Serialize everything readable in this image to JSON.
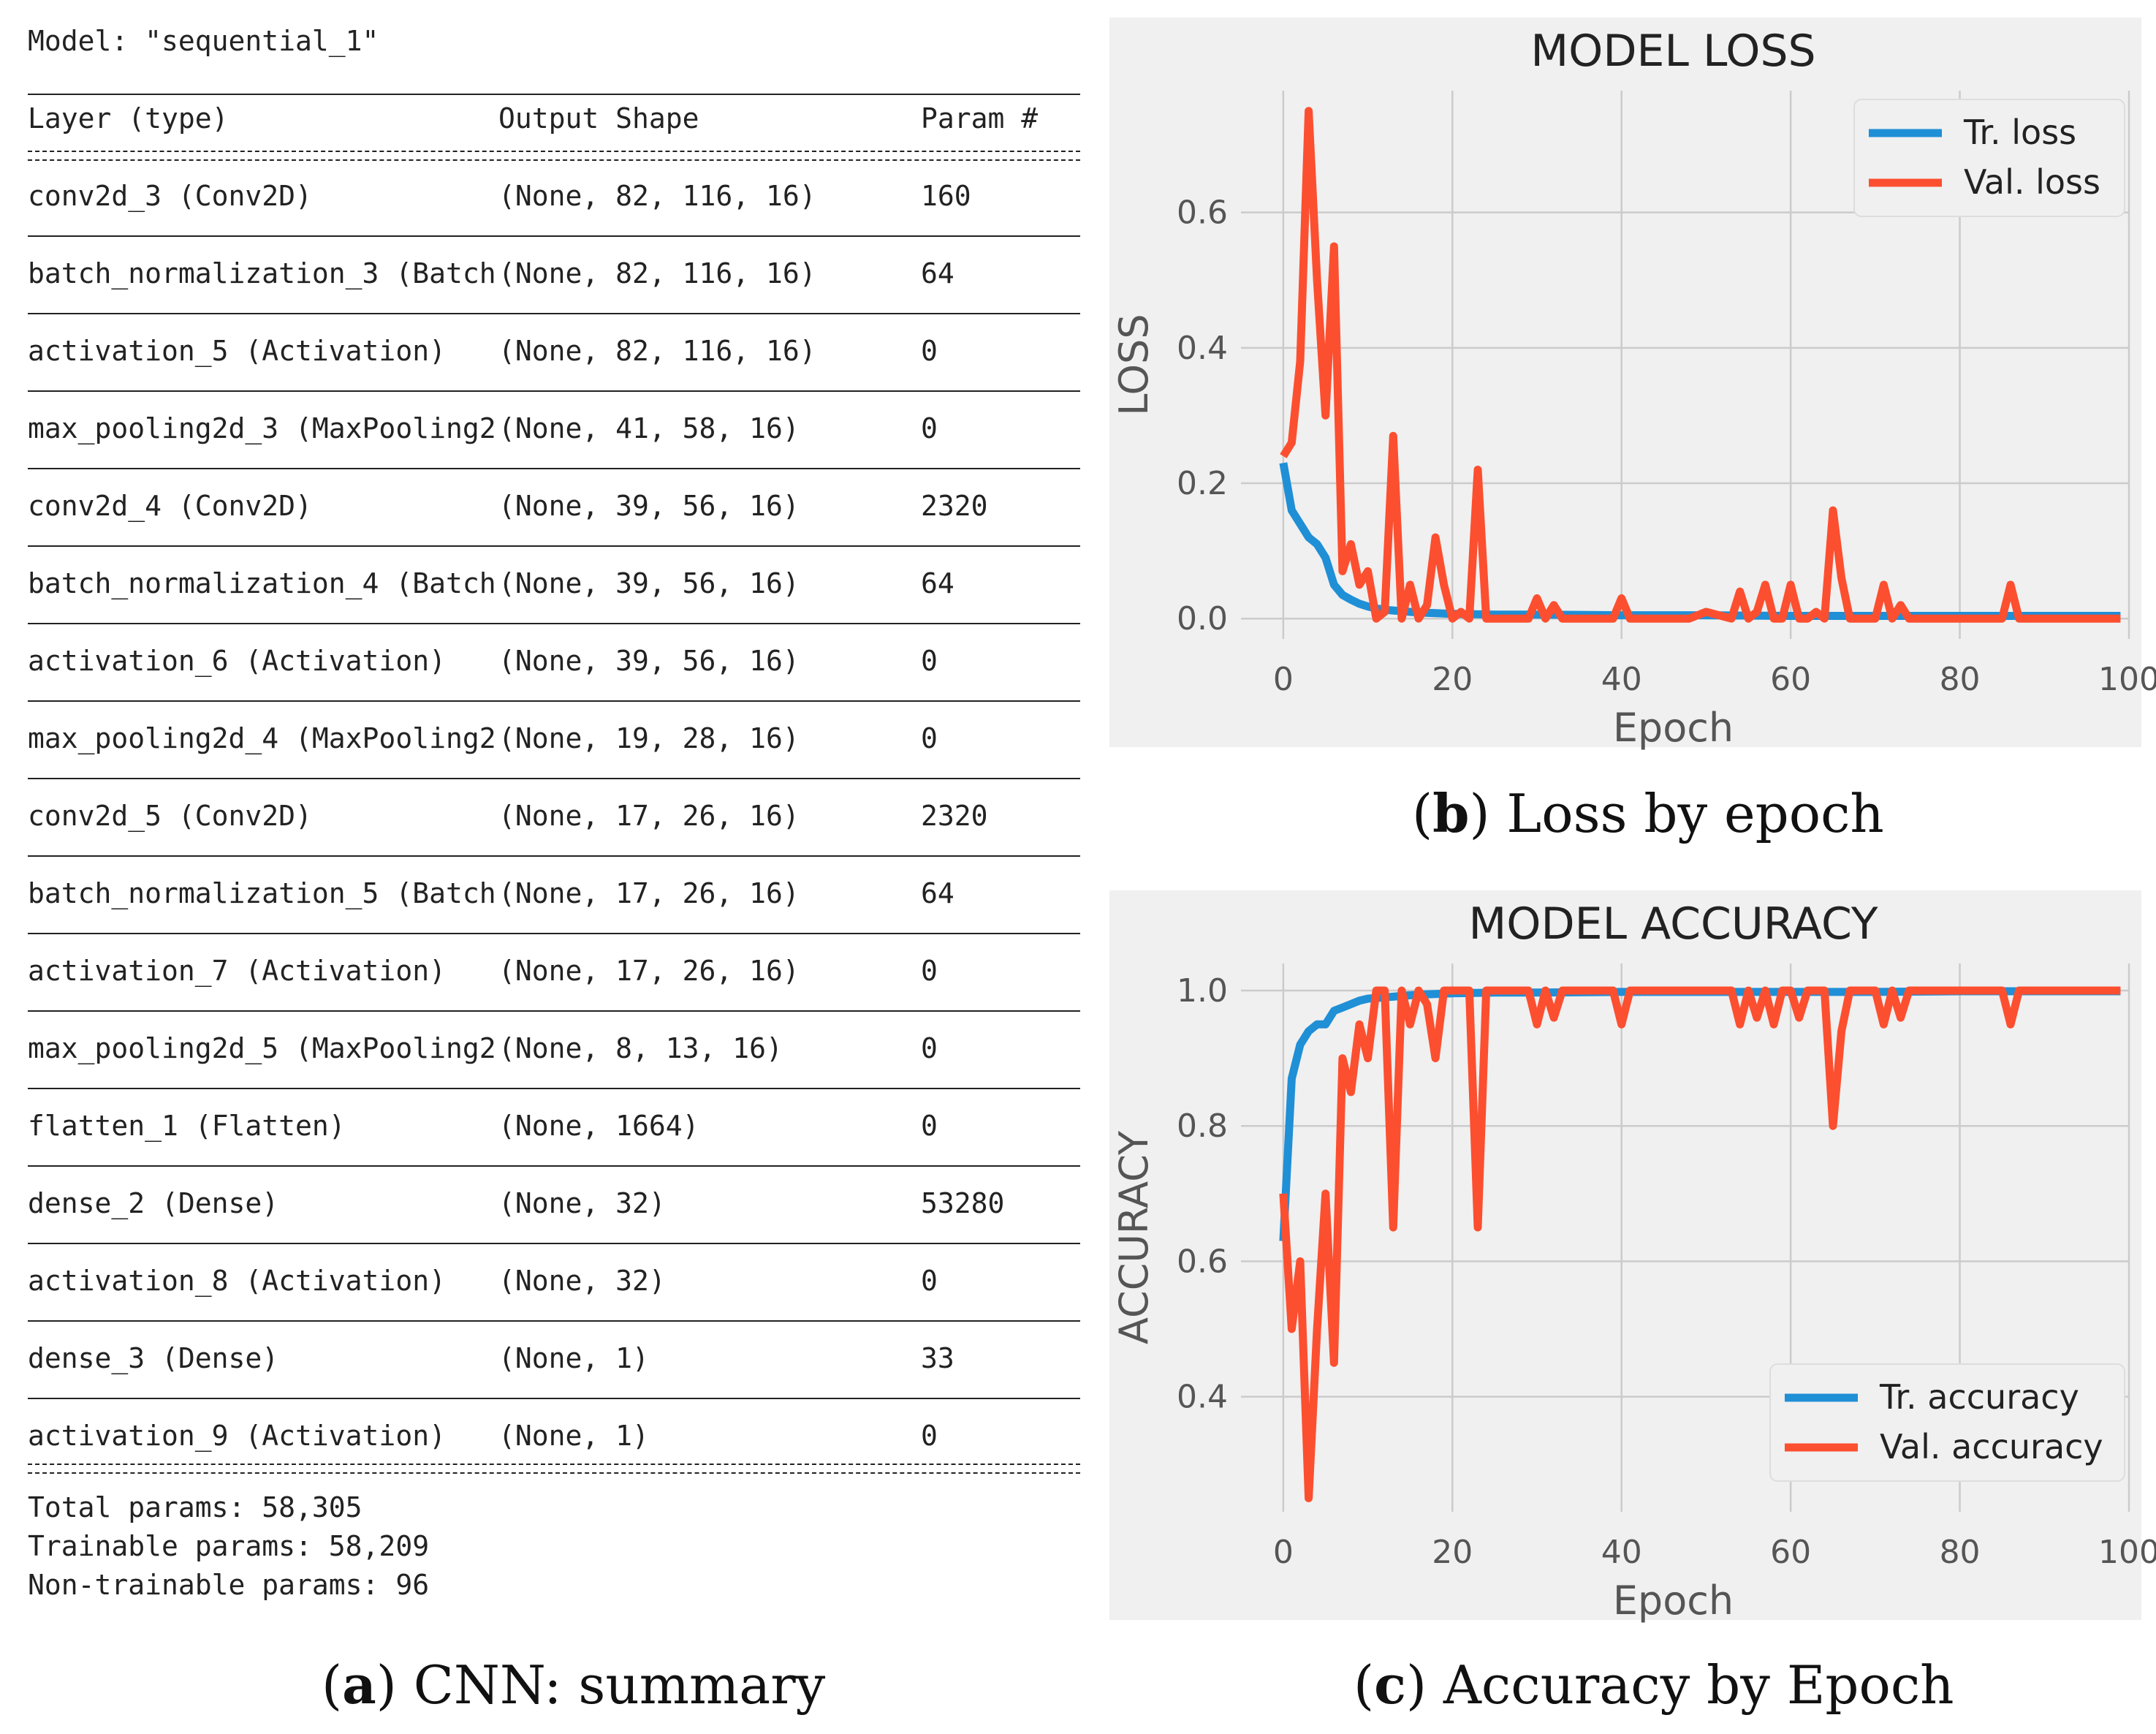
{
  "summary": {
    "model_label": "Model: \"sequential_1\"",
    "headers": [
      "Layer (type)",
      "Output Shape",
      "Param #"
    ],
    "rows": [
      [
        "conv2d_3 (Conv2D)",
        "(None, 82, 116, 16)",
        "160"
      ],
      [
        "batch_normalization_3 (Batch",
        "(None, 82, 116, 16)",
        "64"
      ],
      [
        "activation_5 (Activation)",
        "(None, 82, 116, 16)",
        "0"
      ],
      [
        "max_pooling2d_3 (MaxPooling2",
        "(None, 41, 58, 16)",
        "0"
      ],
      [
        "conv2d_4 (Conv2D)",
        "(None, 39, 56, 16)",
        "2320"
      ],
      [
        "batch_normalization_4 (Batch",
        "(None, 39, 56, 16)",
        "64"
      ],
      [
        "activation_6 (Activation)",
        "(None, 39, 56, 16)",
        "0"
      ],
      [
        "max_pooling2d_4 (MaxPooling2",
        "(None, 19, 28, 16)",
        "0"
      ],
      [
        "conv2d_5 (Conv2D)",
        "(None, 17, 26, 16)",
        "2320"
      ],
      [
        "batch_normalization_5 (Batch",
        "(None, 17, 26, 16)",
        "64"
      ],
      [
        "activation_7 (Activation)",
        "(None, 17, 26, 16)",
        "0"
      ],
      [
        "max_pooling2d_5 (MaxPooling2",
        "(None, 8, 13, 16)",
        "0"
      ],
      [
        "flatten_1 (Flatten)",
        "(None, 1664)",
        "0"
      ],
      [
        "dense_2 (Dense)",
        "(None, 32)",
        "53280"
      ],
      [
        "activation_8 (Activation)",
        "(None, 32)",
        "0"
      ],
      [
        "dense_3 (Dense)",
        "(None, 1)",
        "33"
      ],
      [
        "activation_9 (Activation)",
        "(None, 1)",
        "0"
      ]
    ],
    "total": "Total params: 58,305",
    "trainable": "Trainable params: 58,209",
    "non_trainable": "Non-trainable params: 96"
  },
  "captions": {
    "a": {
      "letter": "a",
      "text": " CNN: summary"
    },
    "b": {
      "letter": "b",
      "text": " Loss by epoch"
    },
    "c": {
      "letter": "c",
      "text": " Accuracy by Epoch"
    }
  },
  "colors": {
    "train": "#1f8fd6",
    "val": "#fc4f30",
    "panel": "#f0f0f0",
    "grid": "#cbcbcb"
  },
  "chart_data": [
    {
      "type": "line",
      "title": "MODEL LOSS",
      "xlabel": "Epoch",
      "ylabel": "LOSS",
      "xlim": [
        -5,
        100
      ],
      "ylim": [
        -0.03,
        0.78
      ],
      "xticks": [
        0,
        20,
        40,
        60,
        80,
        100
      ],
      "yticks": [
        0.0,
        0.2,
        0.4,
        0.6
      ],
      "ytick_labels": [
        "0.0",
        "0.2",
        "0.4",
        "0.6"
      ],
      "legend_position": "top-right",
      "series": [
        {
          "name": "Tr. loss",
          "color_key": "train",
          "x": [
            0,
            1,
            2,
            3,
            4,
            5,
            6,
            7,
            8,
            9,
            10,
            11,
            12,
            13,
            14,
            15,
            16,
            18,
            20,
            25,
            30,
            40,
            50,
            60,
            70,
            80,
            90,
            99
          ],
          "y": [
            0.23,
            0.16,
            0.14,
            0.12,
            0.11,
            0.09,
            0.05,
            0.035,
            0.028,
            0.022,
            0.018,
            0.015,
            0.013,
            0.012,
            0.011,
            0.01,
            0.009,
            0.008,
            0.007,
            0.006,
            0.006,
            0.005,
            0.005,
            0.004,
            0.004,
            0.004,
            0.004,
            0.004
          ]
        },
        {
          "name": "Val. loss",
          "color_key": "val",
          "x": [
            0,
            1,
            2,
            3,
            4,
            5,
            6,
            7,
            8,
            9,
            10,
            11,
            12,
            13,
            14,
            15,
            16,
            17,
            18,
            19,
            20,
            21,
            22,
            23,
            24,
            25,
            26,
            27,
            28,
            29,
            30,
            31,
            32,
            33,
            34,
            35,
            36,
            37,
            38,
            39,
            40,
            41,
            42,
            45,
            48,
            50,
            53,
            54,
            55,
            56,
            57,
            58,
            59,
            60,
            61,
            62,
            63,
            64,
            65,
            66,
            67,
            68,
            69,
            70,
            71,
            72,
            73,
            74,
            75,
            80,
            85,
            86,
            87,
            90,
            95,
            99
          ],
          "y": [
            0.24,
            0.26,
            0.38,
            0.75,
            0.5,
            0.3,
            0.55,
            0.07,
            0.11,
            0.05,
            0.07,
            0.0,
            0.01,
            0.27,
            0.0,
            0.05,
            0.0,
            0.02,
            0.12,
            0.05,
            0.0,
            0.01,
            0.0,
            0.22,
            0.0,
            0.0,
            0.0,
            0.0,
            0.0,
            0.0,
            0.03,
            0.0,
            0.02,
            0.0,
            0.0,
            0.0,
            0.0,
            0.0,
            0.0,
            0.0,
            0.03,
            0.0,
            0.0,
            0.0,
            0.0,
            0.01,
            0.0,
            0.04,
            0.0,
            0.01,
            0.05,
            0.0,
            0.0,
            0.05,
            0.0,
            0.0,
            0.01,
            0.0,
            0.16,
            0.06,
            0.0,
            0.0,
            0.0,
            0.0,
            0.05,
            0.0,
            0.02,
            0.0,
            0.0,
            0.0,
            0.0,
            0.05,
            0.0,
            0.0,
            0.0,
            0.0
          ]
        }
      ]
    },
    {
      "type": "line",
      "title": "MODEL ACCURACY",
      "xlabel": "Epoch",
      "ylabel": "ACCURACY",
      "xlim": [
        -5,
        100
      ],
      "ylim": [
        0.23,
        1.04
      ],
      "xticks": [
        0,
        20,
        40,
        60,
        80,
        100
      ],
      "yticks": [
        0.4,
        0.6,
        0.8,
        1.0
      ],
      "ytick_labels": [
        "0.4",
        "0.6",
        "0.8",
        "1.0"
      ],
      "legend_position": "bottom-right",
      "series": [
        {
          "name": "Tr. accuracy",
          "color_key": "train",
          "x": [
            0,
            1,
            2,
            3,
            4,
            5,
            6,
            7,
            8,
            9,
            10,
            12,
            14,
            16,
            18,
            20,
            25,
            30,
            40,
            50,
            60,
            70,
            80,
            90,
            99
          ],
          "y": [
            0.63,
            0.87,
            0.92,
            0.94,
            0.95,
            0.95,
            0.97,
            0.975,
            0.98,
            0.985,
            0.988,
            0.99,
            0.992,
            0.994,
            0.995,
            0.996,
            0.997,
            0.997,
            0.998,
            0.998,
            0.998,
            0.998,
            0.999,
            0.999,
            0.999
          ]
        },
        {
          "name": "Val. accuracy",
          "color_key": "val",
          "x": [
            0,
            1,
            2,
            3,
            4,
            5,
            6,
            7,
            8,
            9,
            10,
            11,
            12,
            13,
            14,
            15,
            16,
            17,
            18,
            19,
            20,
            21,
            22,
            23,
            24,
            25,
            26,
            27,
            28,
            29,
            30,
            31,
            32,
            33,
            34,
            35,
            36,
            37,
            38,
            39,
            40,
            41,
            42,
            45,
            50,
            53,
            54,
            55,
            56,
            57,
            58,
            59,
            60,
            61,
            62,
            63,
            64,
            65,
            66,
            67,
            68,
            69,
            70,
            71,
            72,
            73,
            74,
            75,
            80,
            85,
            86,
            87,
            90,
            95,
            99
          ],
          "y": [
            0.7,
            0.5,
            0.6,
            0.25,
            0.5,
            0.7,
            0.45,
            0.9,
            0.85,
            0.95,
            0.9,
            1.0,
            1.0,
            0.65,
            1.0,
            0.95,
            1.0,
            0.98,
            0.9,
            1.0,
            1.0,
            1.0,
            1.0,
            0.65,
            1.0,
            1.0,
            1.0,
            1.0,
            1.0,
            1.0,
            0.95,
            1.0,
            0.96,
            1.0,
            1.0,
            1.0,
            1.0,
            1.0,
            1.0,
            1.0,
            0.95,
            1.0,
            1.0,
            1.0,
            1.0,
            1.0,
            0.95,
            1.0,
            0.96,
            1.0,
            0.95,
            1.0,
            1.0,
            0.96,
            1.0,
            1.0,
            1.0,
            0.8,
            0.94,
            1.0,
            1.0,
            1.0,
            1.0,
            0.95,
            1.0,
            0.96,
            1.0,
            1.0,
            1.0,
            1.0,
            0.95,
            1.0,
            1.0,
            1.0,
            1.0
          ]
        }
      ]
    }
  ]
}
